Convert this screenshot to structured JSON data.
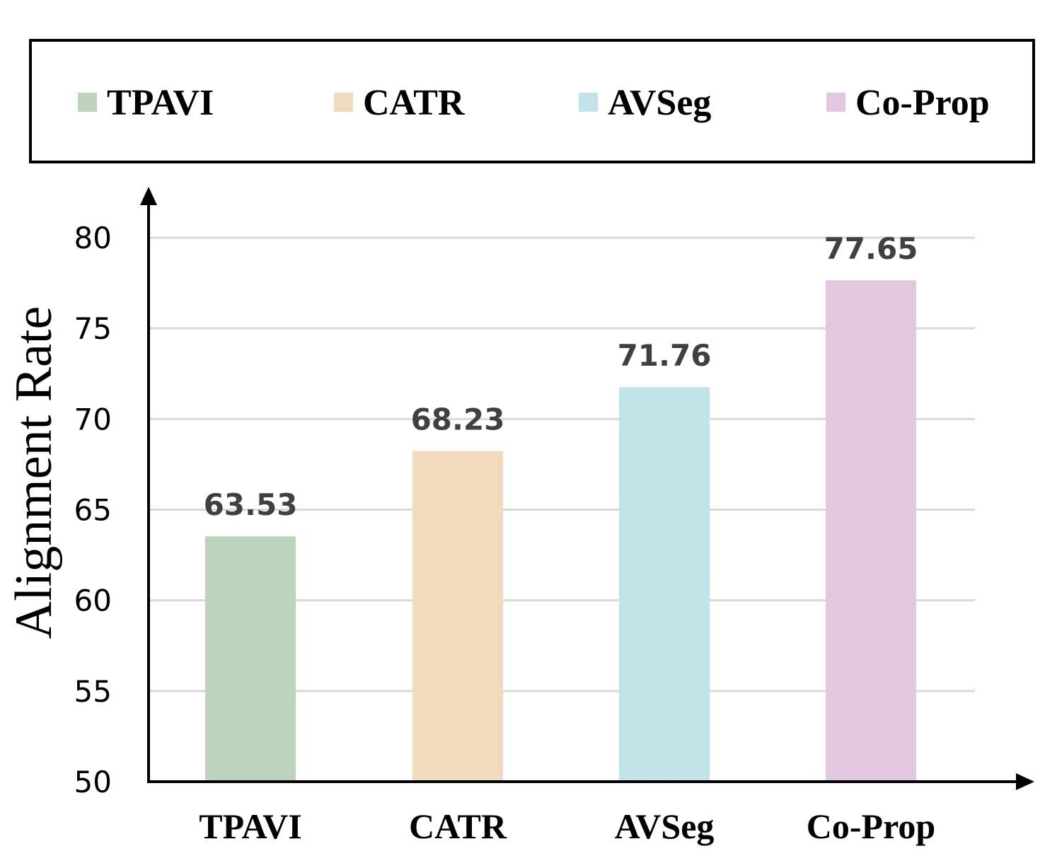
{
  "chart_data": {
    "type": "bar",
    "categories": [
      "TPAVI",
      "CATR",
      "AVSeg",
      "Co-Prop"
    ],
    "values": [
      63.53,
      68.23,
      71.76,
      77.65
    ],
    "value_labels": [
      "63.53",
      "68.23",
      "71.76",
      "77.65"
    ],
    "colors": [
      "#bdd3bb",
      "#f0dcbc",
      "#c2e4e9",
      "#e2c7e1"
    ],
    "ylabel": "Alignment Rate",
    "xlabel": "",
    "ylim": [
      50,
      80
    ],
    "yticks": [
      "50",
      "55",
      "60",
      "65",
      "70",
      "75",
      "80"
    ],
    "grid": true,
    "legend": {
      "position": "top",
      "entries": [
        "TPAVI",
        "CATR",
        "AVSeg",
        "Co-Prop"
      ]
    }
  }
}
